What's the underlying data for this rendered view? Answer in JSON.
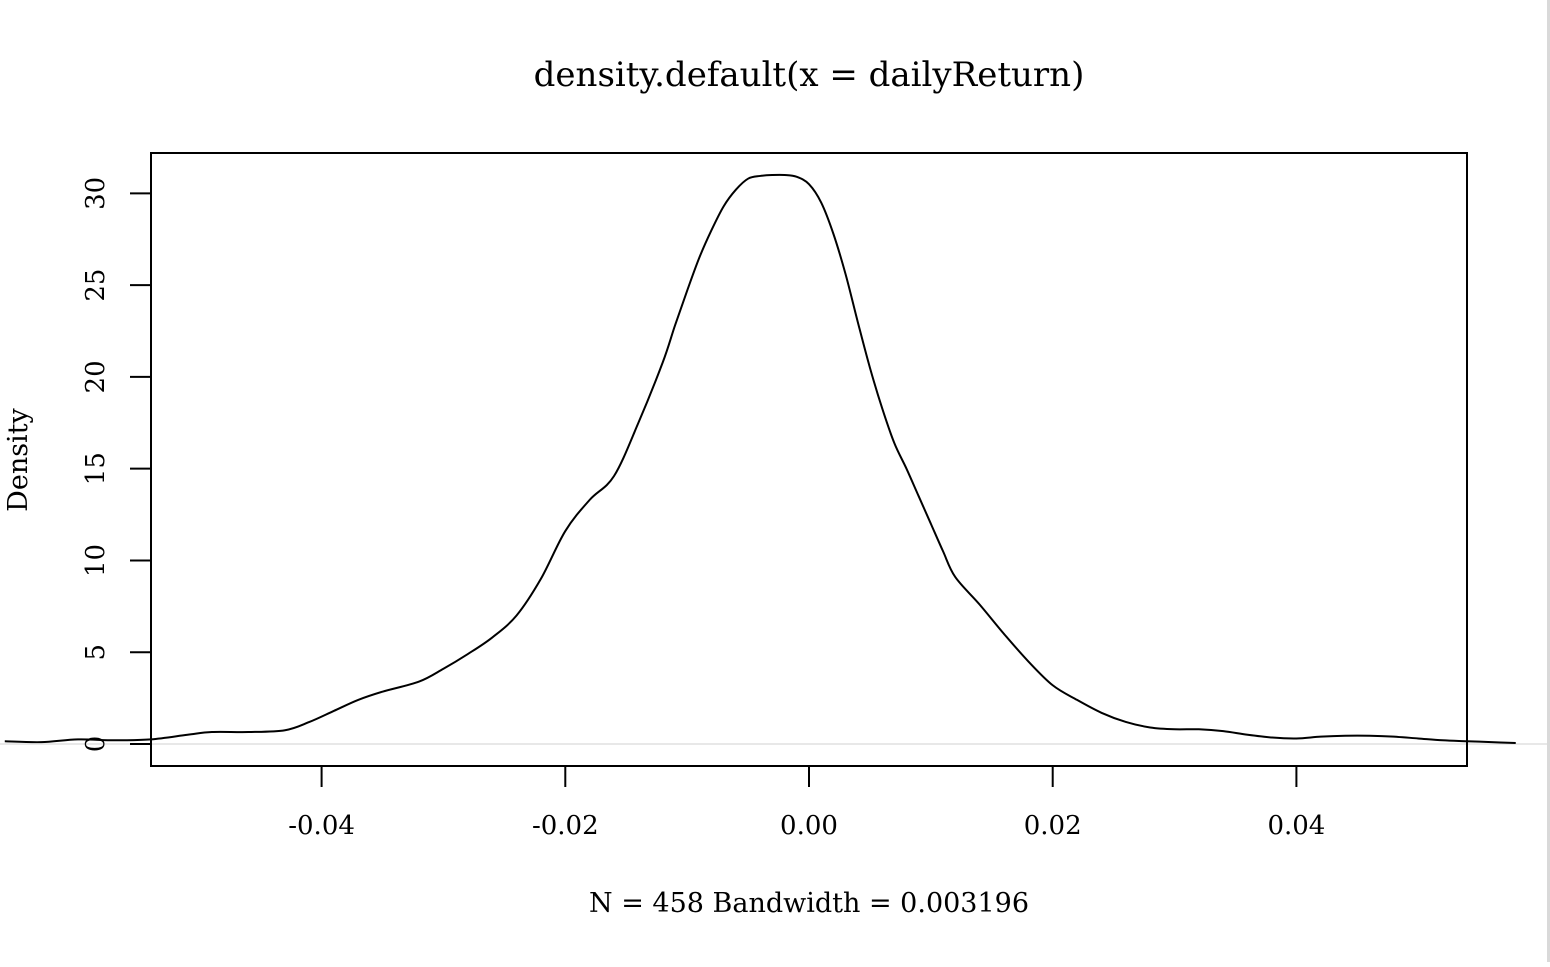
{
  "chart_data": {
    "type": "line",
    "title": "density.default(x = dailyReturn)",
    "xlabel": "N = 458   Bandwidth = 0.003196",
    "ylabel": "Density",
    "xlim": [
      -0.054,
      0.054
    ],
    "ylim": [
      -1.2,
      32.2
    ],
    "x_ticks": [
      -0.04,
      -0.02,
      0.0,
      0.02,
      0.04
    ],
    "x_tick_labels": [
      "-0.04",
      "-0.02",
      "0.00",
      "0.02",
      "0.04"
    ],
    "y_ticks": [
      0,
      5,
      10,
      15,
      20,
      25,
      30
    ],
    "y_tick_labels": [
      "0",
      "5",
      "10",
      "15",
      "20",
      "25",
      "30"
    ],
    "grid": false,
    "legend": "none",
    "line_color": "#000000",
    "baseline_color": "#e0e0e0",
    "series": [
      {
        "x": [
          -0.066,
          -0.063,
          -0.06,
          -0.057,
          -0.054,
          -0.051,
          -0.049,
          -0.046,
          -0.043,
          -0.041,
          -0.039,
          -0.037,
          -0.035,
          -0.032,
          -0.03,
          -0.028,
          -0.026,
          -0.024,
          -0.022,
          -0.02,
          -0.018,
          -0.016,
          -0.014,
          -0.012,
          -0.011,
          -0.01,
          -0.009,
          -0.008,
          -0.007,
          -0.006,
          -0.005,
          -0.004,
          -0.003,
          -0.002,
          -0.001,
          0.0,
          0.001,
          0.002,
          0.003,
          0.004,
          0.005,
          0.006,
          0.007,
          0.008,
          0.009,
          0.01,
          0.011,
          0.012,
          0.014,
          0.016,
          0.018,
          0.02,
          0.022,
          0.024,
          0.026,
          0.028,
          0.03,
          0.032,
          0.034,
          0.036,
          0.038,
          0.04,
          0.042,
          0.044,
          0.046,
          0.048,
          0.05,
          0.052,
          0.054,
          0.056,
          0.058
        ],
        "y": [
          0.15,
          0.1,
          0.25,
          0.2,
          0.25,
          0.5,
          0.65,
          0.65,
          0.75,
          1.2,
          1.8,
          2.4,
          2.85,
          3.4,
          4.1,
          4.9,
          5.8,
          7.0,
          9.0,
          11.6,
          13.3,
          14.6,
          17.5,
          20.8,
          22.8,
          24.7,
          26.5,
          28.0,
          29.3,
          30.2,
          30.8,
          30.95,
          31.0,
          31.0,
          30.9,
          30.5,
          29.5,
          27.8,
          25.6,
          23.0,
          20.5,
          18.3,
          16.4,
          15.0,
          13.5,
          12.0,
          10.5,
          9.1,
          7.6,
          6.0,
          4.5,
          3.2,
          2.4,
          1.7,
          1.2,
          0.9,
          0.8,
          0.8,
          0.7,
          0.5,
          0.35,
          0.3,
          0.4,
          0.45,
          0.45,
          0.4,
          0.3,
          0.2,
          0.15,
          0.1,
          0.05
        ]
      }
    ]
  }
}
